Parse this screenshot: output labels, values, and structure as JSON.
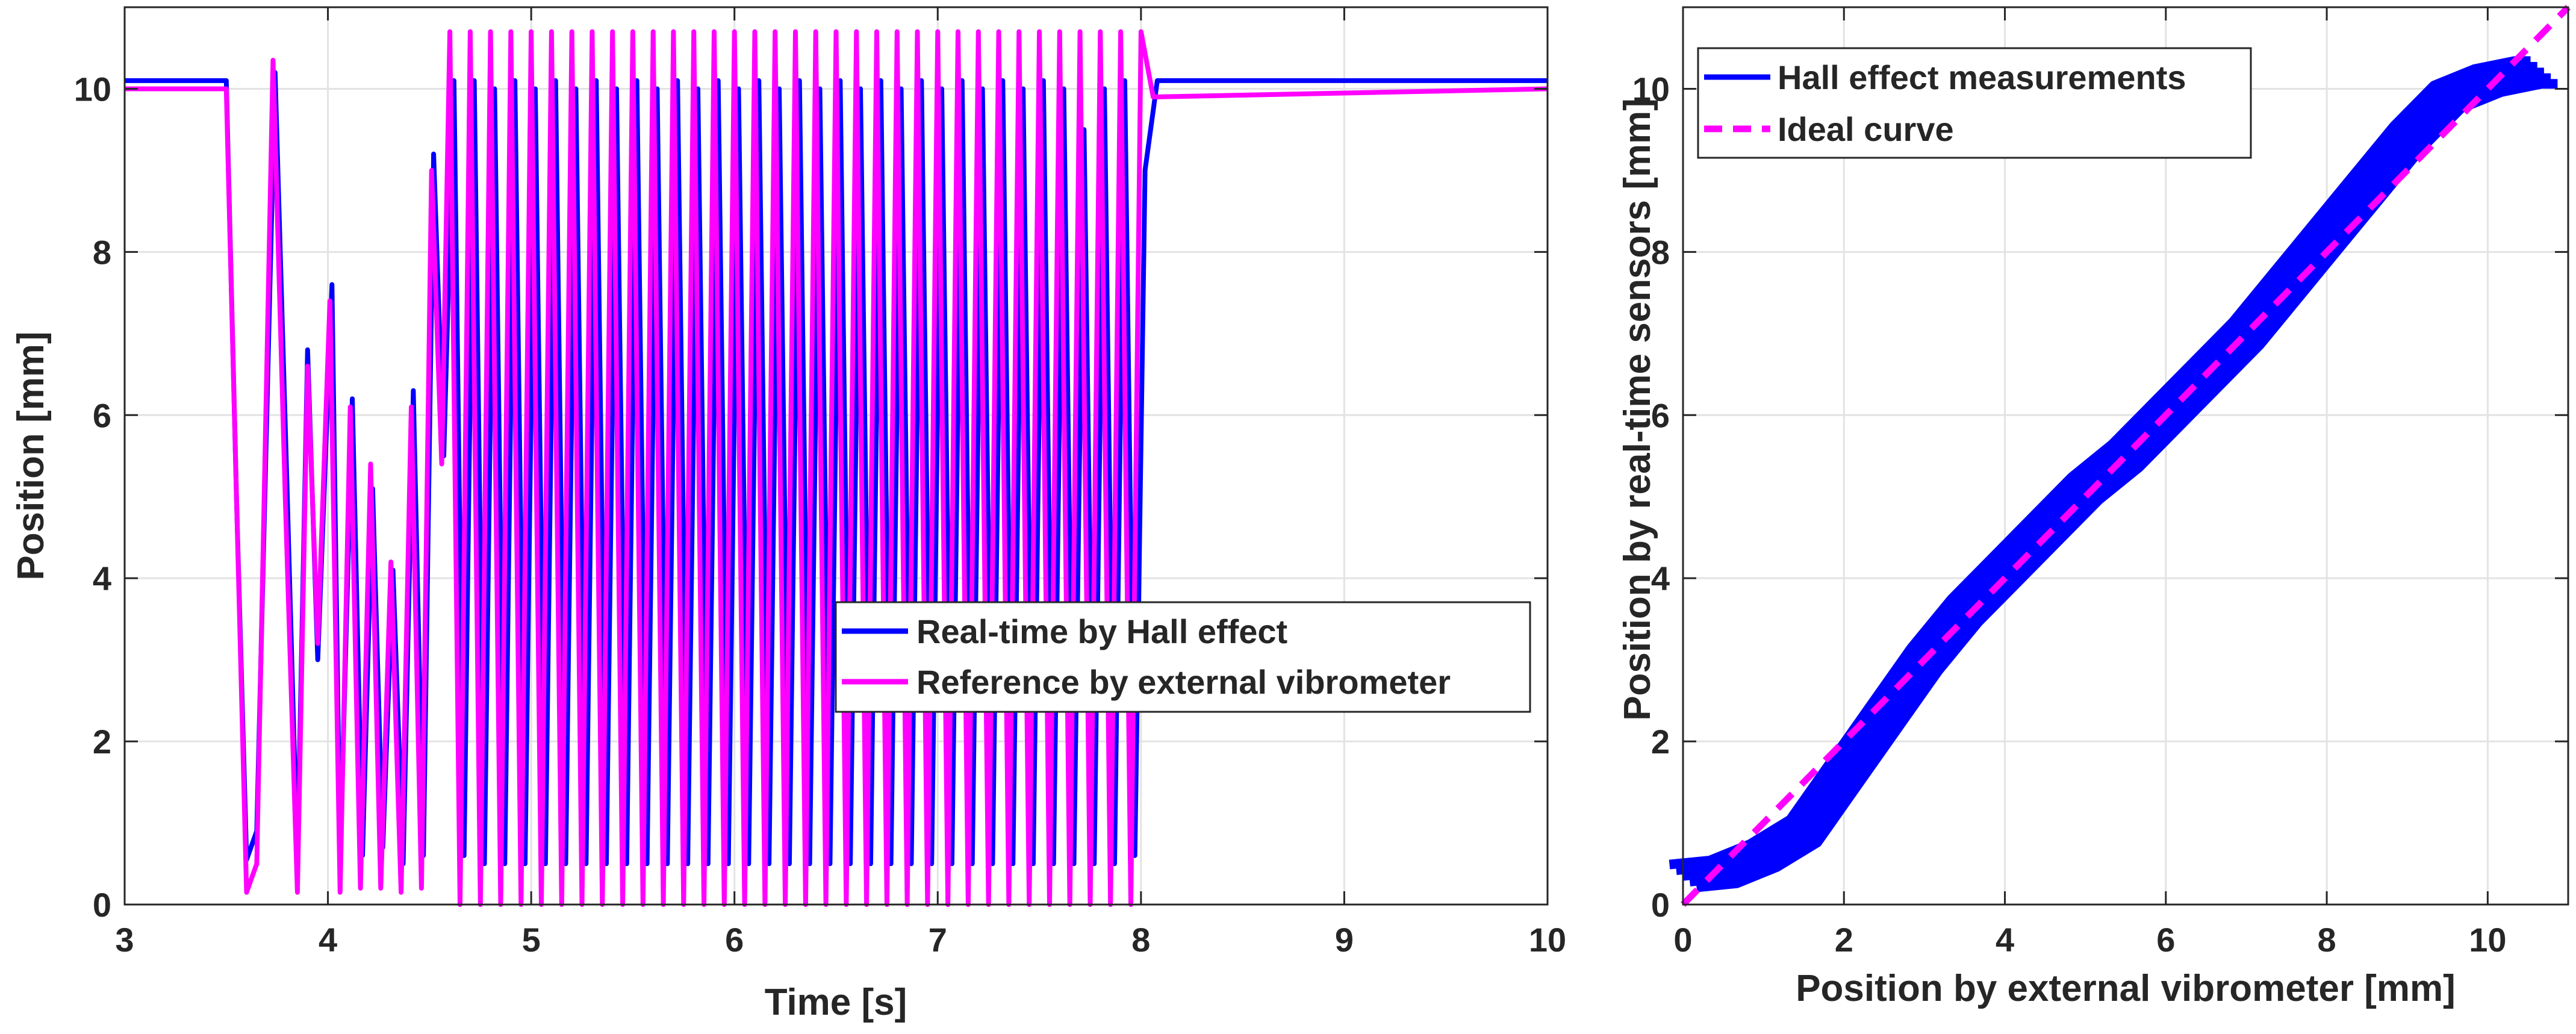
{
  "colors": {
    "hall": "#0000ff",
    "reference": "#ff00ff",
    "axis": "#262626",
    "grid": "#e3e3e3"
  },
  "chart_data": [
    {
      "type": "line",
      "xlabel": "Time [s]",
      "ylabel": "Position [mm]",
      "xlim": [
        3,
        10
      ],
      "ylim": [
        0,
        11
      ],
      "xticks": [
        3,
        4,
        5,
        6,
        7,
        8,
        9,
        10
      ],
      "yticks": [
        0,
        2,
        4,
        6,
        8,
        10
      ],
      "grid": true,
      "legend": {
        "placement": "lower-right",
        "entries": [
          "Real-time by Hall effect",
          "Reference by external vibrometer"
        ]
      },
      "series": [
        {
          "name": "Real-time by Hall effect",
          "color": "#0000ff",
          "x": [
            3.0,
            3.5,
            3.55,
            3.6,
            3.65,
            3.74,
            3.8,
            3.85,
            3.9,
            3.95,
            4.02,
            4.06,
            4.12,
            4.17,
            4.22,
            4.27,
            4.32,
            4.37,
            4.42,
            4.47,
            4.52,
            4.57,
            4.62,
            4.67,
            4.72,
            4.77,
            4.82,
            4.87,
            4.92,
            4.97,
            5.02,
            5.07,
            5.12,
            5.17,
            5.22,
            5.27,
            5.32,
            5.37,
            5.42,
            5.47,
            5.52,
            5.57,
            5.62,
            5.67,
            5.72,
            5.77,
            5.82,
            5.87,
            5.92,
            5.97,
            6.02,
            6.07,
            6.12,
            6.17,
            6.22,
            6.27,
            6.32,
            6.37,
            6.42,
            6.47,
            6.52,
            6.57,
            6.62,
            6.67,
            6.72,
            6.77,
            6.82,
            6.87,
            6.92,
            6.97,
            7.02,
            7.07,
            7.12,
            7.17,
            7.22,
            7.27,
            7.32,
            7.37,
            7.42,
            7.47,
            7.52,
            7.57,
            7.62,
            7.67,
            7.72,
            7.77,
            7.82,
            7.87,
            7.92,
            7.97,
            8.02,
            8.08,
            10.0
          ],
          "y": [
            10.1,
            10.1,
            5.0,
            0.55,
            0.9,
            10.2,
            5.0,
            0.5,
            6.8,
            3.0,
            7.6,
            0.5,
            6.2,
            0.6,
            5.1,
            0.7,
            4.1,
            0.5,
            6.3,
            0.6,
            9.2,
            5.5,
            10.1,
            0.6,
            10.1,
            0.5,
            10.0,
            0.5,
            10.1,
            0.5,
            10.0,
            0.5,
            10.1,
            0.5,
            10.0,
            0.5,
            10.1,
            0.5,
            10.0,
            0.5,
            10.1,
            0.5,
            10.0,
            0.5,
            10.1,
            0.5,
            10.0,
            0.5,
            10.1,
            0.5,
            10.0,
            0.5,
            10.1,
            0.5,
            10.0,
            0.5,
            10.1,
            0.5,
            10.0,
            0.5,
            10.1,
            0.5,
            10.0,
            0.5,
            10.1,
            0.5,
            10.0,
            0.5,
            10.1,
            0.5,
            10.0,
            0.5,
            10.1,
            0.5,
            10.0,
            0.5,
            10.1,
            0.5,
            10.0,
            0.5,
            10.1,
            0.5,
            10.0,
            0.5,
            9.5,
            0.5,
            10.0,
            0.5,
            10.1,
            0.6,
            9.0,
            10.1,
            10.1
          ]
        },
        {
          "name": "Reference by external vibrometer",
          "color": "#ff00ff",
          "x": [
            3.0,
            3.5,
            3.55,
            3.6,
            3.65,
            3.73,
            3.79,
            3.85,
            3.9,
            3.95,
            4.01,
            4.06,
            4.11,
            4.16,
            4.21,
            4.26,
            4.31,
            4.36,
            4.41,
            4.46,
            4.51,
            4.56,
            4.6,
            4.65,
            4.7,
            4.75,
            4.8,
            4.85,
            4.9,
            4.95,
            5.0,
            5.05,
            5.1,
            5.15,
            5.2,
            5.25,
            5.3,
            5.35,
            5.4,
            5.45,
            5.5,
            5.55,
            5.6,
            5.65,
            5.7,
            5.75,
            5.8,
            5.85,
            5.9,
            5.95,
            6.0,
            6.05,
            6.1,
            6.15,
            6.2,
            6.25,
            6.3,
            6.35,
            6.4,
            6.45,
            6.5,
            6.55,
            6.6,
            6.65,
            6.7,
            6.75,
            6.8,
            6.85,
            6.9,
            6.95,
            7.0,
            7.05,
            7.1,
            7.15,
            7.2,
            7.25,
            7.3,
            7.35,
            7.4,
            7.45,
            7.5,
            7.55,
            7.6,
            7.65,
            7.7,
            7.75,
            7.8,
            7.85,
            7.9,
            7.95,
            8.0,
            8.06,
            10.0
          ],
          "y": [
            10.0,
            10.0,
            5.0,
            0.15,
            0.5,
            10.35,
            5.0,
            0.15,
            6.6,
            3.2,
            7.4,
            0.15,
            6.1,
            0.2,
            5.4,
            0.2,
            4.2,
            0.15,
            6.1,
            0.2,
            9.0,
            5.4,
            10.7,
            0.0,
            10.7,
            0.0,
            10.7,
            0.0,
            10.7,
            0.0,
            10.7,
            0.0,
            10.7,
            0.0,
            10.7,
            0.0,
            10.7,
            0.0,
            10.7,
            0.0,
            10.7,
            0.0,
            10.7,
            0.0,
            10.7,
            0.0,
            10.7,
            0.0,
            10.7,
            0.0,
            10.7,
            0.0,
            10.7,
            0.0,
            10.7,
            0.0,
            10.7,
            0.0,
            10.7,
            0.0,
            10.7,
            0.0,
            10.7,
            0.0,
            10.7,
            0.0,
            10.7,
            0.0,
            10.7,
            0.0,
            10.7,
            0.0,
            10.7,
            0.0,
            10.7,
            0.0,
            10.7,
            0.0,
            10.7,
            0.0,
            10.7,
            0.0,
            10.7,
            0.0,
            10.7,
            0.0,
            10.7,
            0.0,
            10.7,
            0.0,
            10.7,
            9.9,
            10.0
          ]
        }
      ]
    },
    {
      "type": "line",
      "xlabel": "Position by external vibrometer [mm]",
      "ylabel": "Position by real-time sensors [mm]",
      "xlim": [
        0,
        11
      ],
      "ylim": [
        0,
        11
      ],
      "xticks": [
        0,
        2,
        4,
        6,
        8,
        10
      ],
      "yticks": [
        0,
        2,
        4,
        6,
        8,
        10
      ],
      "grid": true,
      "legend": {
        "placement": "top-left",
        "entries": [
          "Hall effect measurements",
          "Ideal curve"
        ]
      },
      "series": [
        {
          "name": "Hall effect measurements",
          "color": "#0000ff",
          "style": "solid",
          "x": [
            0.0,
            0.5,
            1.0,
            1.5,
            2.0,
            2.5,
            3.0,
            3.5,
            4.0,
            4.5,
            5.0,
            5.5,
            6.0,
            6.5,
            7.0,
            7.5,
            8.0,
            8.5,
            9.0,
            9.5,
            10.0,
            10.5,
            10.7
          ],
          "y": [
            0.35,
            0.4,
            0.6,
            0.9,
            1.6,
            2.3,
            3.0,
            3.6,
            4.1,
            4.6,
            5.1,
            5.5,
            6.0,
            6.5,
            7.0,
            7.6,
            8.2,
            8.8,
            9.4,
            9.9,
            10.1,
            10.2,
            10.2
          ],
          "band": 0.28
        },
        {
          "name": "Ideal curve",
          "color": "#ff00ff",
          "style": "dashed",
          "x": [
            0,
            11
          ],
          "y": [
            0,
            11
          ]
        }
      ]
    }
  ]
}
